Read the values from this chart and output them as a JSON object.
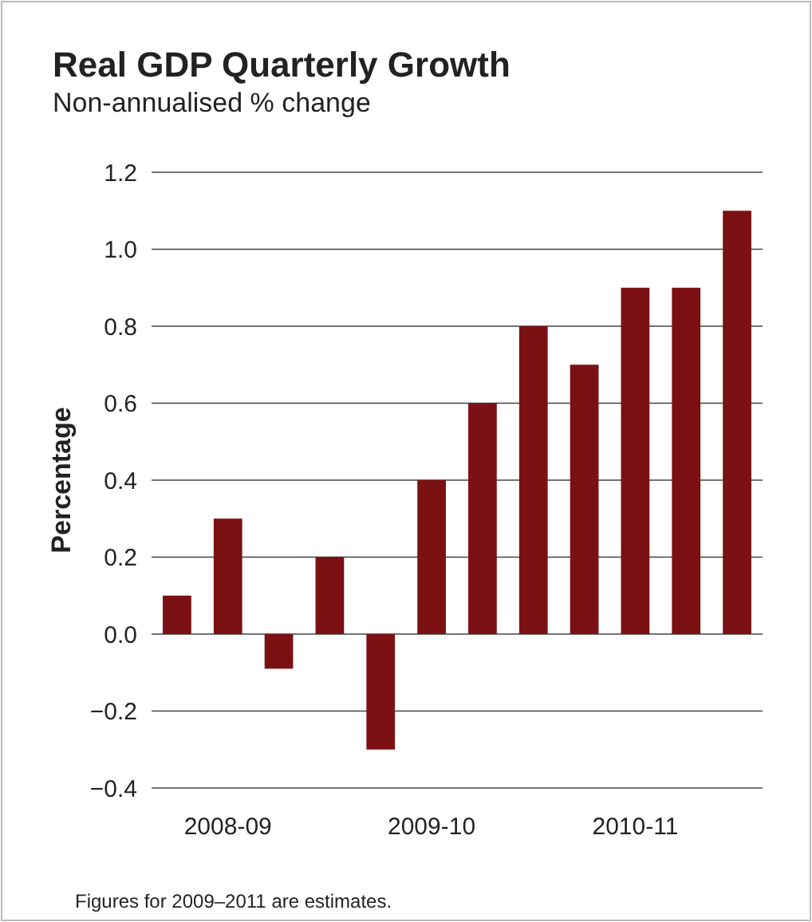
{
  "chart_data": {
    "type": "bar",
    "title": "Real GDP Quarterly Growth",
    "subtitle": "Non-annualised % change",
    "ylabel": "Percentage",
    "categories": [
      null,
      "2008-09",
      null,
      null,
      null,
      "2009-10",
      null,
      null,
      null,
      "2010-11",
      null,
      null
    ],
    "values": [
      0.1,
      0.3,
      -0.09,
      0.2,
      -0.3,
      0.4,
      0.6,
      0.8,
      0.7,
      0.9,
      0.9,
      1.1
    ],
    "color": "#7b1113",
    "ylim": [
      -0.4,
      1.2
    ],
    "yticks": [
      {
        "value": -0.4,
        "label": "−0.4"
      },
      {
        "value": -0.2,
        "label": "−0.2"
      },
      {
        "value": 0,
        "label": "0.0"
      },
      {
        "value": 0.2,
        "label": "0.2"
      },
      {
        "value": 0.4,
        "label": "0.4"
      },
      {
        "value": 0.6,
        "label": "0.6"
      },
      {
        "value": 0.8,
        "label": "0.8"
      },
      {
        "value": 1,
        "label": "1.0"
      },
      {
        "value": 1.2,
        "label": "1.2"
      }
    ],
    "grid": "y",
    "annotations": [
      "Figures for 2009–2011 are estimates."
    ]
  }
}
